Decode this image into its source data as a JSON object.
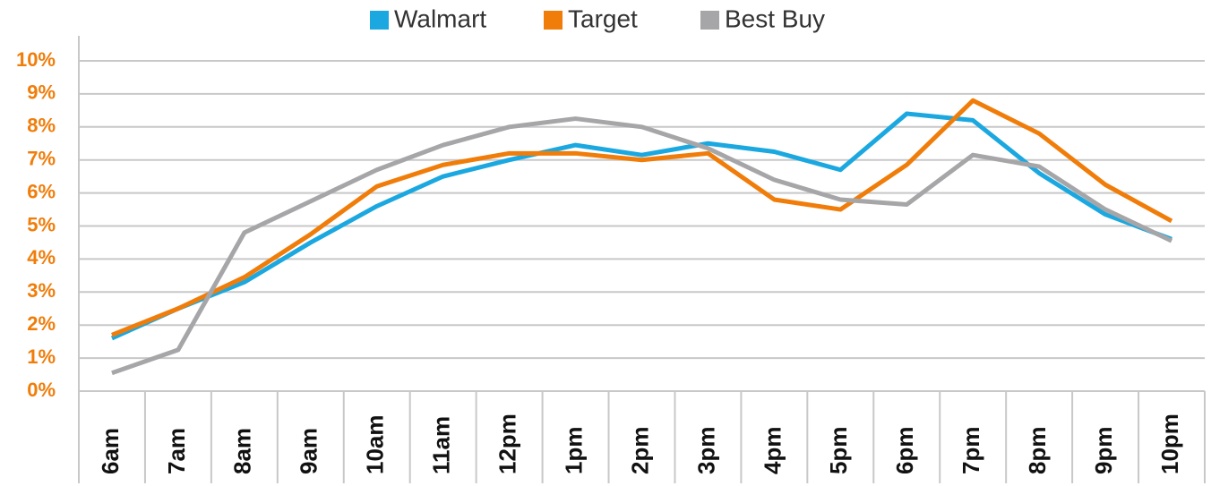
{
  "chart_data": {
    "type": "line",
    "categories": [
      "6am",
      "7am",
      "8am",
      "9am",
      "10am",
      "11am",
      "12pm",
      "1pm",
      "2pm",
      "3pm",
      "4pm",
      "5pm",
      "6pm",
      "7pm",
      "8pm",
      "9pm",
      "10pm"
    ],
    "series": [
      {
        "name": "Walmart",
        "color": "#1ba8e0",
        "values": [
          1.6,
          2.5,
          3.3,
          4.5,
          5.6,
          6.5,
          7.0,
          7.45,
          7.15,
          7.5,
          7.25,
          6.7,
          8.4,
          8.2,
          6.6,
          5.35,
          4.6
        ]
      },
      {
        "name": "Target",
        "color": "#f07d0a",
        "values": [
          1.7,
          2.5,
          3.45,
          4.75,
          6.2,
          6.85,
          7.2,
          7.2,
          7.0,
          7.2,
          5.8,
          5.5,
          6.85,
          8.8,
          7.8,
          6.25,
          5.15
        ]
      },
      {
        "name": "Best Buy",
        "color": "#a6a6a8",
        "values": [
          0.55,
          1.25,
          4.8,
          5.75,
          6.7,
          7.45,
          8.0,
          8.25,
          8.0,
          7.35,
          6.4,
          5.8,
          5.65,
          7.15,
          6.8,
          5.5,
          4.55
        ]
      }
    ],
    "ylim": [
      0,
      10
    ],
    "yticks": [
      {
        "value": 0,
        "label": "0%"
      },
      {
        "value": 1,
        "label": "1%"
      },
      {
        "value": 2,
        "label": "2%"
      },
      {
        "value": 3,
        "label": "3%"
      },
      {
        "value": 4,
        "label": "4%"
      },
      {
        "value": 5,
        "label": "5%"
      },
      {
        "value": 6,
        "label": "6%"
      },
      {
        "value": 7,
        "label": "7%"
      },
      {
        "value": 8,
        "label": "8%"
      },
      {
        "value": 9,
        "label": "9%"
      },
      {
        "value": 10,
        "label": "10%"
      }
    ],
    "grid": true,
    "legend": "top"
  }
}
